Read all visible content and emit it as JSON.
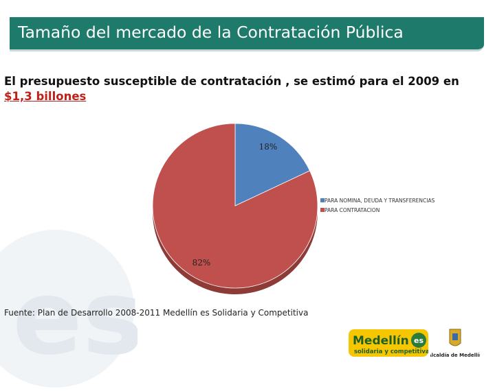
{
  "slide": {
    "title": "Tamaño del mercado de la Contratación Pública",
    "subtitle_text": "El presupuesto susceptible de contratación , se estimó para el 2009 en",
    "subtitle_amount": "$1,3 billones",
    "source": "Fuente: Plan de Desarrollo 2008-2011 Medellín es Solidaria y Competitiva",
    "logo_medellin_text": "Medellín",
    "logo_medellin_tagline": "solidaria y competitiva",
    "logo_alcaldia_text": "Alcaldía de Medellín"
  },
  "colors": {
    "title_bar": "#1e7a6a",
    "slice_1": "#4f81bd",
    "slice_2": "#c0504d",
    "amount_text": "#c0201a"
  },
  "chart_data": {
    "type": "pie",
    "title": "",
    "categories": [
      "PARA NOMINA, DEUDA Y TRANSFERENCIAS",
      "PARA CONTRATACION"
    ],
    "values": [
      18,
      82
    ],
    "labels": [
      "18%",
      "82%"
    ],
    "legend_position": "right"
  }
}
